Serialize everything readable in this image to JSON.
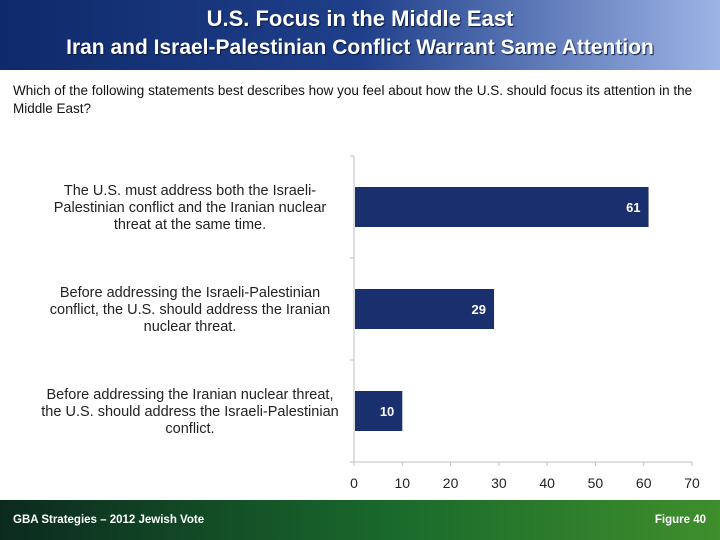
{
  "header": {
    "title_line1": "U.S. Focus in the Middle East",
    "title_line2": "Iran and Israel-Palestinian Conflict Warrant Same Attention"
  },
  "question": "Which of the following statements best describes how you feel about how the U.S. should focus its attention in the Middle East?",
  "footer": {
    "left": "GBA Strategies – 2012 Jewish Vote",
    "right": "Figure  40"
  },
  "colors": {
    "bar": "#1a2f6e",
    "header_start": "#0f2a6b",
    "footer_start": "#0b2a1f"
  },
  "chart_data": {
    "type": "bar",
    "orientation": "horizontal",
    "categories": [
      [
        "The U.S. must address both the Israeli-",
        "Palestinian conflict and the Iranian nuclear",
        "threat at the same time."
      ],
      [
        "Before addressing the Israeli-Palestinian",
        "conflict, the U.S. should address the Iranian",
        "nuclear threat."
      ],
      [
        "Before addressing the Iranian nuclear threat,",
        "the U.S. should address the Israeli-Palestinian",
        "conflict."
      ]
    ],
    "values": [
      61,
      29,
      10
    ],
    "value_labels": [
      "61",
      "29",
      "10"
    ],
    "xlim": [
      0,
      70
    ],
    "ticks": [
      0,
      10,
      20,
      30,
      40,
      50,
      60,
      70
    ],
    "tick_labels": [
      "0",
      "10",
      "20",
      "30",
      "40",
      "50",
      "60",
      "70"
    ],
    "grid": false
  }
}
